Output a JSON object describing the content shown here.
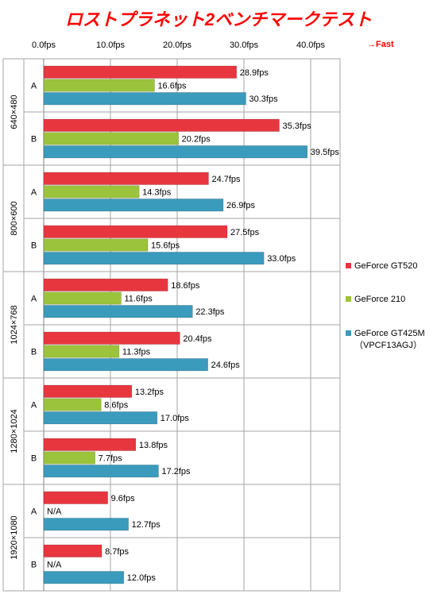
{
  "chart_data": {
    "type": "bar",
    "orientation": "horizontal",
    "title": "ロストプラネット2ベンチマークテスト",
    "x_ticks": [
      "0.0fps",
      "10.0fps",
      "20.0fps",
      "30.0fps",
      "40.0fps"
    ],
    "x_range": [
      0,
      44
    ],
    "direction_label": "→Fast",
    "grid": true,
    "legend_position": "right",
    "groups": [
      {
        "resolution": "640×480",
        "rows": [
          {
            "sub": "A",
            "values": [
              28.9,
              16.6,
              30.3
            ],
            "labels": [
              "28.9fps",
              "16.6fps",
              "30.3fps"
            ]
          },
          {
            "sub": "B",
            "values": [
              35.3,
              20.2,
              39.5
            ],
            "labels": [
              "35.3fps",
              "20.2fps",
              "39.5fps"
            ]
          }
        ]
      },
      {
        "resolution": "800×600",
        "rows": [
          {
            "sub": "A",
            "values": [
              24.7,
              14.3,
              26.9
            ],
            "labels": [
              "24.7fps",
              "14.3fps",
              "26.9fps"
            ]
          },
          {
            "sub": "B",
            "values": [
              27.5,
              15.6,
              33.0
            ],
            "labels": [
              "27.5fps",
              "15.6fps",
              "33.0fps"
            ]
          }
        ]
      },
      {
        "resolution": "1024×768",
        "rows": [
          {
            "sub": "A",
            "values": [
              18.6,
              11.6,
              22.3
            ],
            "labels": [
              "18.6fps",
              "11.6fps",
              "22.3fps"
            ]
          },
          {
            "sub": "B",
            "values": [
              20.4,
              11.3,
              24.6
            ],
            "labels": [
              "20.4fps",
              "11.3fps",
              "24.6fps"
            ]
          }
        ]
      },
      {
        "resolution": "1280×1024",
        "rows": [
          {
            "sub": "A",
            "values": [
              13.2,
              8.6,
              17.0
            ],
            "labels": [
              "13.2fps",
              "8.6fps",
              "17.0fps"
            ]
          },
          {
            "sub": "B",
            "values": [
              13.8,
              7.7,
              17.2
            ],
            "labels": [
              "13.8fps",
              "7.7fps",
              "17.2fps"
            ]
          }
        ]
      },
      {
        "resolution": "1920×1080",
        "rows": [
          {
            "sub": "A",
            "values": [
              9.6,
              null,
              12.7
            ],
            "labels": [
              "9.6fps",
              "N/A",
              "12.7fps"
            ]
          },
          {
            "sub": "B",
            "values": [
              8.7,
              null,
              12.0
            ],
            "labels": [
              "8.7fps",
              "N/A",
              "12.0fps"
            ]
          }
        ]
      }
    ],
    "series": [
      {
        "name": "GeForce GT520",
        "color": "#e8363f"
      },
      {
        "name": "GeForce 210",
        "color": "#9bc33c"
      },
      {
        "name": "GeForce GT425M",
        "name_line2": "（VPCF13AGJ）",
        "color": "#3a9bbd"
      }
    ],
    "colors": {
      "title": "#ff0000",
      "direction": "#ff0000",
      "grid": "#a6a6a6",
      "text": "#000000"
    }
  }
}
